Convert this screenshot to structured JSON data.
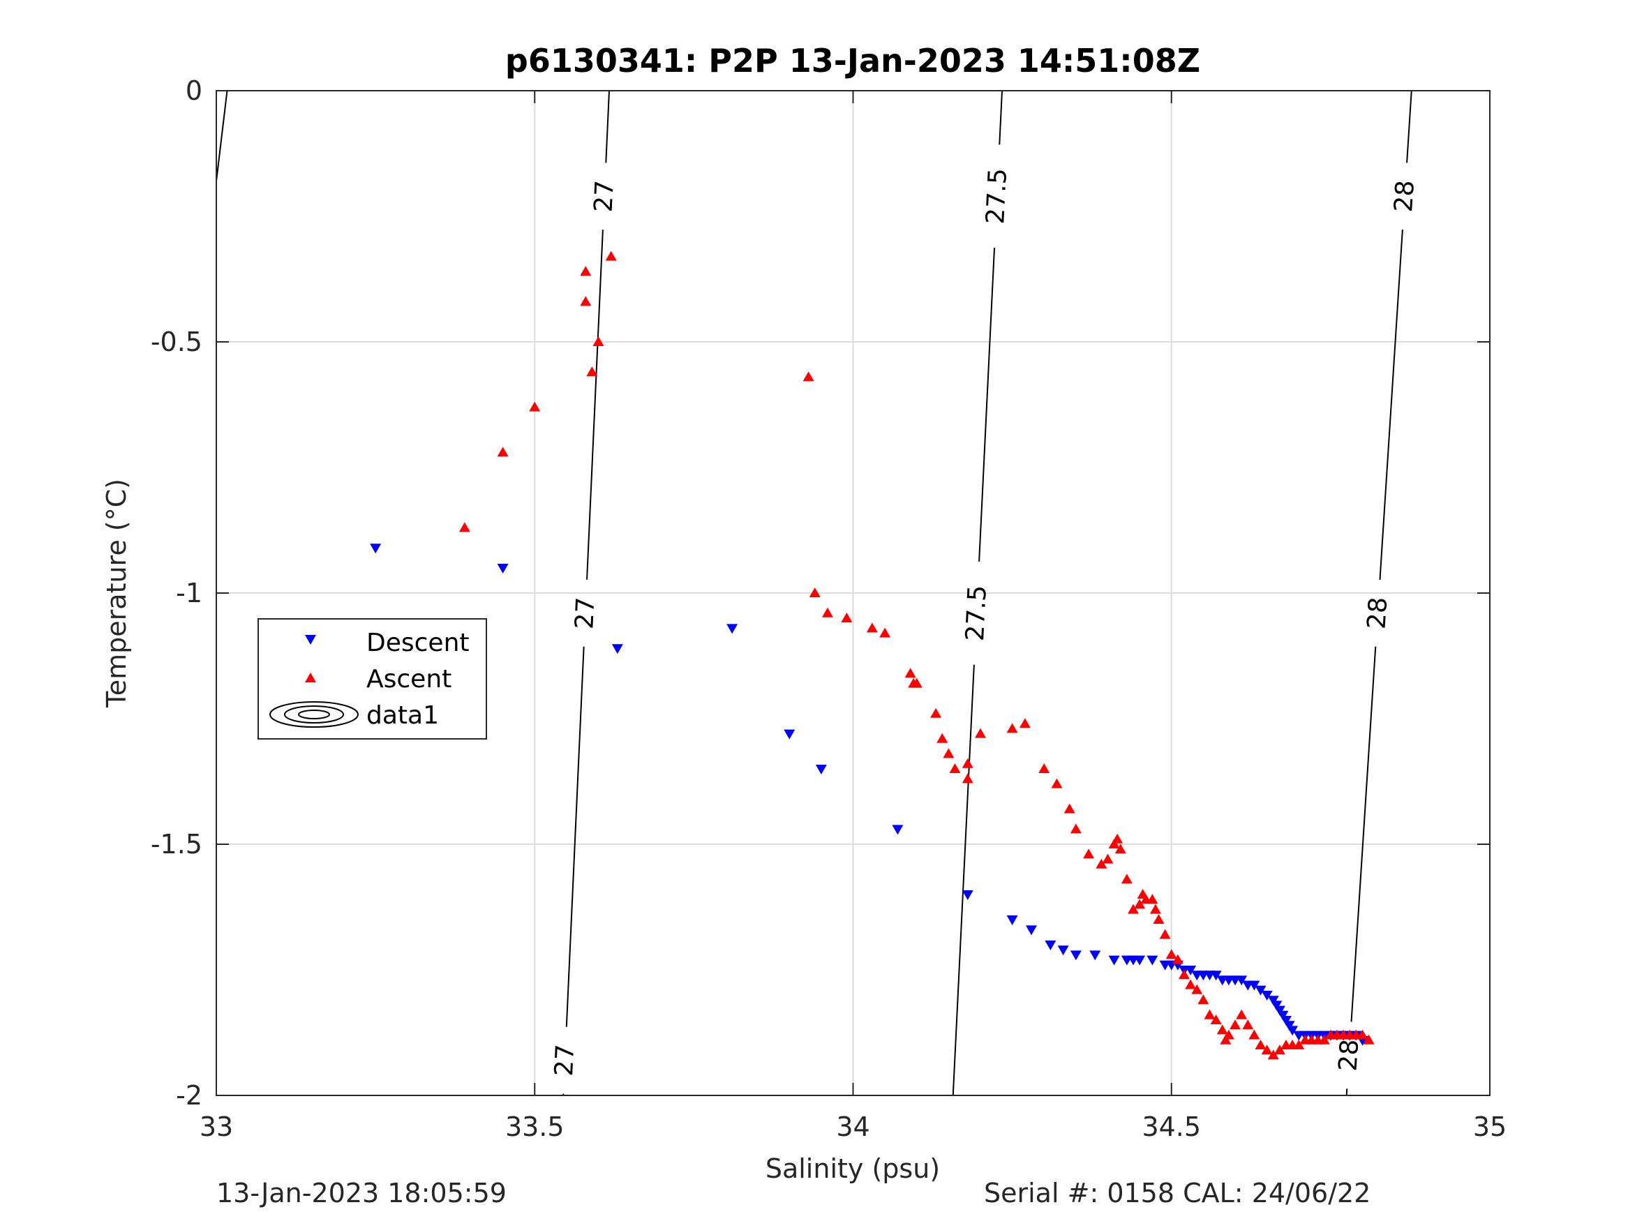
{
  "chart_data": {
    "type": "scatter",
    "title": "p6130341: P2P 13-Jan-2023 14:51:08Z",
    "xlabel": "Salinity (psu)",
    "ylabel": "Temperature (°C)",
    "xlim": [
      33,
      35
    ],
    "ylim": [
      -2,
      0
    ],
    "xticks": [
      "33",
      "33.5",
      "34",
      "34.5",
      "35"
    ],
    "yticks": [
      "-2",
      "-1.5",
      "-1",
      "-0.5",
      "0"
    ],
    "grid": true,
    "legend": {
      "placement": "left",
      "entries": [
        "Descent",
        "Ascent",
        "data1"
      ]
    },
    "colors": {
      "descent": "#0000ff",
      "ascent": "#ff0000",
      "contour": "#000000",
      "grid": "#dcdcdc"
    },
    "series": [
      {
        "name": "Descent",
        "marker": "triangle-down",
        "points": [
          [
            33.25,
            -0.91
          ],
          [
            33.45,
            -0.95
          ],
          [
            33.63,
            -1.11
          ],
          [
            33.81,
            -1.07
          ],
          [
            33.9,
            -1.28
          ],
          [
            33.95,
            -1.35
          ],
          [
            34.07,
            -1.47
          ],
          [
            34.18,
            -1.6
          ],
          [
            34.25,
            -1.65
          ],
          [
            34.28,
            -1.67
          ],
          [
            34.31,
            -1.7
          ],
          [
            34.33,
            -1.71
          ],
          [
            34.35,
            -1.72
          ],
          [
            34.38,
            -1.72
          ],
          [
            34.41,
            -1.73
          ],
          [
            34.43,
            -1.73
          ],
          [
            34.44,
            -1.73
          ],
          [
            34.45,
            -1.73
          ],
          [
            34.47,
            -1.73
          ],
          [
            34.49,
            -1.74
          ],
          [
            34.5,
            -1.74
          ],
          [
            34.51,
            -1.74
          ],
          [
            34.52,
            -1.75
          ],
          [
            34.53,
            -1.75
          ],
          [
            34.54,
            -1.76
          ],
          [
            34.55,
            -1.76
          ],
          [
            34.56,
            -1.76
          ],
          [
            34.57,
            -1.76
          ],
          [
            34.58,
            -1.77
          ],
          [
            34.59,
            -1.77
          ],
          [
            34.6,
            -1.77
          ],
          [
            34.61,
            -1.77
          ],
          [
            34.62,
            -1.78
          ],
          [
            34.63,
            -1.78
          ],
          [
            34.64,
            -1.79
          ],
          [
            34.65,
            -1.8
          ],
          [
            34.66,
            -1.81
          ],
          [
            34.665,
            -1.82
          ],
          [
            34.67,
            -1.83
          ],
          [
            34.675,
            -1.84
          ],
          [
            34.68,
            -1.85
          ],
          [
            34.685,
            -1.86
          ],
          [
            34.69,
            -1.87
          ],
          [
            34.7,
            -1.88
          ],
          [
            34.71,
            -1.88
          ],
          [
            34.72,
            -1.88
          ],
          [
            34.73,
            -1.88
          ],
          [
            34.74,
            -1.88
          ],
          [
            34.75,
            -1.88
          ],
          [
            34.76,
            -1.88
          ],
          [
            34.77,
            -1.88
          ],
          [
            34.78,
            -1.88
          ],
          [
            34.79,
            -1.88
          ],
          [
            34.8,
            -1.89
          ]
        ]
      },
      {
        "name": "Ascent",
        "marker": "triangle-up",
        "points": [
          [
            33.62,
            -0.33
          ],
          [
            33.58,
            -0.36
          ],
          [
            33.58,
            -0.42
          ],
          [
            33.6,
            -0.5
          ],
          [
            33.59,
            -0.56
          ],
          [
            33.93,
            -0.57
          ],
          [
            33.5,
            -0.63
          ],
          [
            33.45,
            -0.72
          ],
          [
            33.39,
            -0.87
          ],
          [
            33.94,
            -1.0
          ],
          [
            33.96,
            -1.04
          ],
          [
            33.99,
            -1.05
          ],
          [
            34.03,
            -1.07
          ],
          [
            34.05,
            -1.08
          ],
          [
            34.09,
            -1.16
          ],
          [
            34.095,
            -1.18
          ],
          [
            34.1,
            -1.18
          ],
          [
            34.13,
            -1.24
          ],
          [
            34.14,
            -1.29
          ],
          [
            34.15,
            -1.32
          ],
          [
            34.16,
            -1.35
          ],
          [
            34.18,
            -1.34
          ],
          [
            34.18,
            -1.37
          ],
          [
            34.2,
            -1.28
          ],
          [
            34.25,
            -1.27
          ],
          [
            34.27,
            -1.26
          ],
          [
            34.3,
            -1.35
          ],
          [
            34.32,
            -1.38
          ],
          [
            34.34,
            -1.43
          ],
          [
            34.35,
            -1.47
          ],
          [
            34.37,
            -1.52
          ],
          [
            34.39,
            -1.54
          ],
          [
            34.4,
            -1.53
          ],
          [
            34.41,
            -1.5
          ],
          [
            34.415,
            -1.49
          ],
          [
            34.42,
            -1.51
          ],
          [
            34.43,
            -1.57
          ],
          [
            34.44,
            -1.63
          ],
          [
            34.45,
            -1.62
          ],
          [
            34.455,
            -1.6
          ],
          [
            34.46,
            -1.61
          ],
          [
            34.47,
            -1.61
          ],
          [
            34.475,
            -1.63
          ],
          [
            34.48,
            -1.65
          ],
          [
            34.49,
            -1.68
          ],
          [
            34.5,
            -1.72
          ],
          [
            34.51,
            -1.73
          ],
          [
            34.52,
            -1.76
          ],
          [
            34.53,
            -1.78
          ],
          [
            34.54,
            -1.79
          ],
          [
            34.55,
            -1.81
          ],
          [
            34.56,
            -1.84
          ],
          [
            34.57,
            -1.85
          ],
          [
            34.58,
            -1.87
          ],
          [
            34.585,
            -1.89
          ],
          [
            34.59,
            -1.88
          ],
          [
            34.6,
            -1.86
          ],
          [
            34.61,
            -1.84
          ],
          [
            34.62,
            -1.86
          ],
          [
            34.63,
            -1.88
          ],
          [
            34.64,
            -1.9
          ],
          [
            34.65,
            -1.91
          ],
          [
            34.66,
            -1.92
          ],
          [
            34.67,
            -1.91
          ],
          [
            34.68,
            -1.9
          ],
          [
            34.69,
            -1.9
          ],
          [
            34.7,
            -1.9
          ],
          [
            34.71,
            -1.89
          ],
          [
            34.72,
            -1.89
          ],
          [
            34.73,
            -1.89
          ],
          [
            34.74,
            -1.89
          ],
          [
            34.75,
            -1.88
          ],
          [
            34.76,
            -1.88
          ],
          [
            34.77,
            -1.88
          ],
          [
            34.78,
            -1.88
          ],
          [
            34.79,
            -1.88
          ],
          [
            34.8,
            -1.88
          ],
          [
            34.81,
            -1.89
          ]
        ]
      }
    ],
    "contours": [
      {
        "label": "27",
        "points": [
          [
            33.617,
            0
          ],
          [
            33.545,
            -2
          ]
        ],
        "label_positions": [
          -0.21,
          -1.04,
          -1.93
        ]
      },
      {
        "label": "27.5",
        "points": [
          [
            34.234,
            0
          ],
          [
            34.157,
            -2
          ]
        ],
        "label_positions": [
          -0.21,
          -1.04
        ]
      },
      {
        "label": "28",
        "points": [
          [
            34.877,
            0
          ],
          [
            34.775,
            -2
          ]
        ],
        "label_positions": [
          -0.21,
          -1.04,
          -1.92
        ]
      },
      {
        "label": "",
        "points": [
          [
            33.017,
            0
          ],
          [
            33.0,
            -0.18
          ]
        ],
        "label_positions": []
      }
    ]
  },
  "footer": {
    "left": "13-Jan-2023 18:05:59",
    "right": "Serial #: 0158  CAL: 24/06/22"
  }
}
